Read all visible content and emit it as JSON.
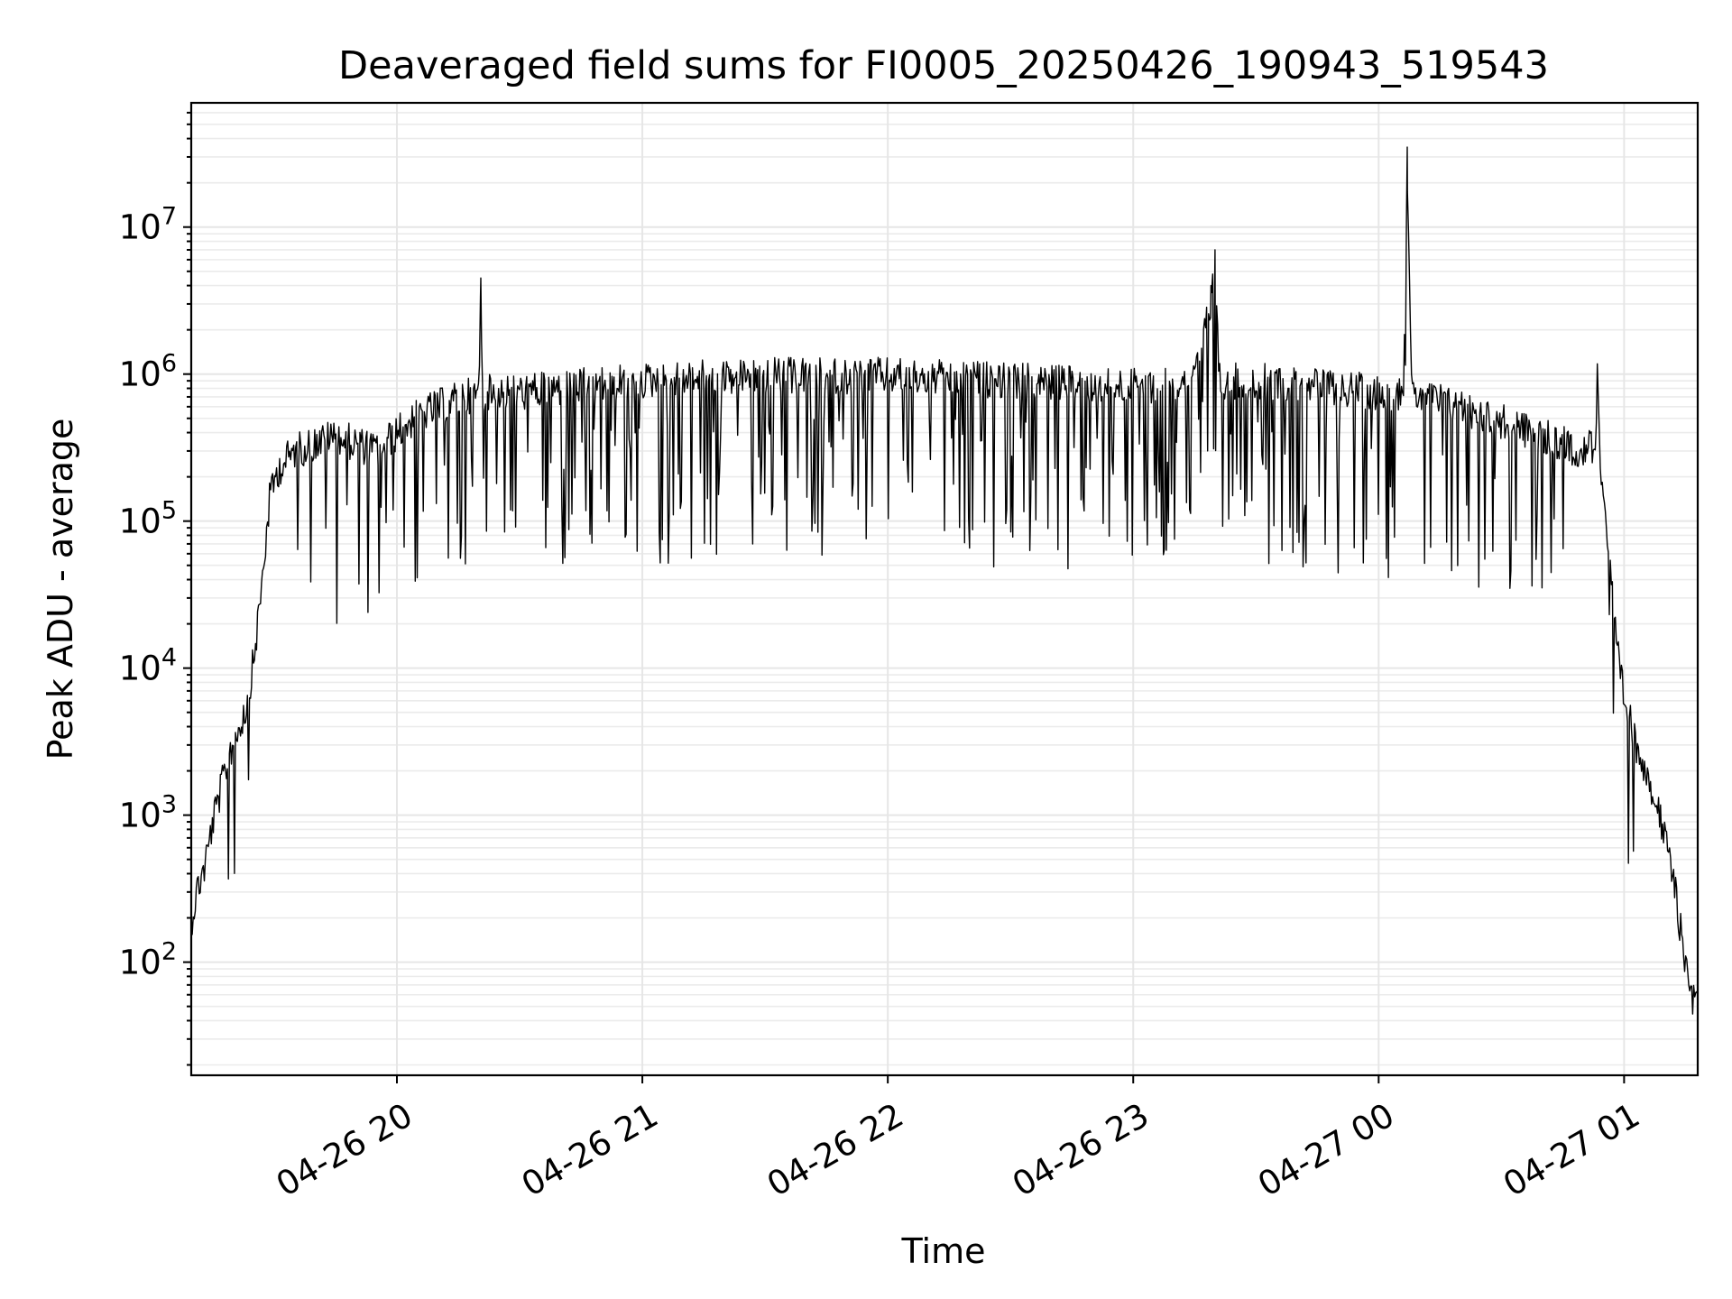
{
  "chart_data": {
    "type": "line",
    "title": "Deaveraged field sums for FI0005_20250426_190943_519543",
    "xlabel": "Time",
    "ylabel": "Peak ADU - average",
    "yscale": "log",
    "ylim": [
      17,
      70000000
    ],
    "xlim": [
      "2025-04-26 19:09:43",
      "2025-04-27 01:18:00"
    ],
    "x_ticks": [
      {
        "value": "2025-04-26 20:00",
        "label": "04-26 20"
      },
      {
        "value": "2025-04-26 21:00",
        "label": "04-26 21"
      },
      {
        "value": "2025-04-26 22:00",
        "label": "04-26 22"
      },
      {
        "value": "2025-04-26 23:00",
        "label": "04-26 23"
      },
      {
        "value": "2025-04-27 00:00",
        "label": "04-27 00"
      },
      {
        "value": "2025-04-27 01:00",
        "label": "04-27 01"
      }
    ],
    "y_ticks": [
      {
        "value": 100,
        "base": "10",
        "exp": "2"
      },
      {
        "value": 1000,
        "base": "10",
        "exp": "3"
      },
      {
        "value": 10000,
        "base": "10",
        "exp": "4"
      },
      {
        "value": 100000,
        "base": "10",
        "exp": "5"
      },
      {
        "value": 1000000,
        "base": "10",
        "exp": "6"
      },
      {
        "value": 10000000,
        "base": "10",
        "exp": "7"
      }
    ],
    "grid": "both",
    "line_color": "#000000",
    "series": [
      {
        "x": [
          "2025-04-26 19:09:43",
          "2025-04-26 19:11:00",
          "2025-04-26 19:13:00",
          "2025-04-26 19:15:00",
          "2025-04-26 19:17:00",
          "2025-04-26 19:19:00",
          "2025-04-26 19:21:00",
          "2025-04-26 19:23:00",
          "2025-04-26 19:25:00",
          "2025-04-26 19:27:00",
          "2025-04-26 19:29:00",
          "2025-04-26 19:31:00",
          "2025-04-26 19:33:00",
          "2025-04-26 19:35:00",
          "2025-04-26 19:40:00",
          "2025-04-26 19:45:00",
          "2025-04-26 19:55:00",
          "2025-04-26 20:05:00",
          "2025-04-26 20:15:00",
          "2025-04-26 20:20:00",
          "2025-04-26 20:20:30",
          "2025-04-26 20:21:00",
          "2025-04-26 20:30:00",
          "2025-04-26 20:45:00",
          "2025-04-26 21:00:00",
          "2025-04-26 21:30:00",
          "2025-04-26 22:00:00",
          "2025-04-26 22:30:00",
          "2025-04-26 23:00:00",
          "2025-04-26 23:15:00",
          "2025-04-26 23:19:00",
          "2025-04-26 23:20:00",
          "2025-04-26 23:21:00",
          "2025-04-26 23:30:00",
          "2025-04-26 23:45:00",
          "2025-04-27 00:00:00",
          "2025-04-27 00:06:00",
          "2025-04-27 00:07:00",
          "2025-04-27 00:08:00",
          "2025-04-27 00:20:00",
          "2025-04-27 00:40:00",
          "2025-04-27 00:50:00",
          "2025-04-27 00:53:00",
          "2025-04-27 00:53:30",
          "2025-04-27 00:54:00",
          "2025-04-27 00:56:00",
          "2025-04-27 00:58:00",
          "2025-04-27 01:00:00",
          "2025-04-27 01:03:00",
          "2025-04-27 01:06:00",
          "2025-04-27 01:09:00",
          "2025-04-27 01:12:00",
          "2025-04-27 01:14:00",
          "2025-04-27 01:16:00",
          "2025-04-27 01:17:00"
        ],
        "y": [
          250,
          400,
          600,
          1200,
          2000,
          3500,
          5000,
          7000,
          15000,
          50000,
          200000,
          300000,
          350000,
          400000,
          450000,
          500000,
          400000,
          700000,
          900000,
          1000000,
          4500000,
          1000000,
          1000000,
          1100000,
          1200000,
          1300000,
          1300000,
          1200000,
          1100000,
          1200000,
          4000000,
          7000000,
          1200000,
          1200000,
          1100000,
          1000000,
          1000000,
          35000000,
          1000000,
          800000,
          500000,
          400000,
          450000,
          1800000,
          400000,
          100000,
          20000,
          8000,
          4000,
          2500,
          1200,
          500,
          200,
          100,
          70
        ]
      }
    ]
  }
}
